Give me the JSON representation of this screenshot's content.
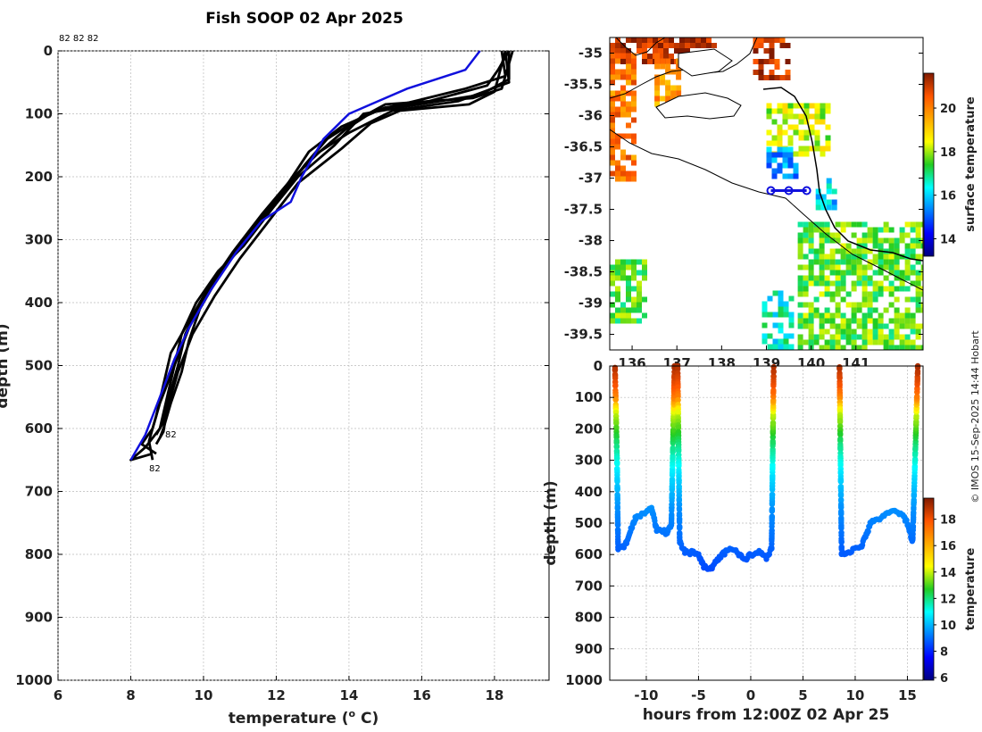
{
  "title": "Fish SOOP 02 Apr 2025",
  "profile_counts_label": "82 82 82",
  "profile_end_labels": [
    "82",
    "82"
  ],
  "credit": "© IMOS 15-Sep-2025 14:44 Hobart",
  "colors": {
    "profile": "#000000",
    "climatology": "#1010dd"
  },
  "chart_data": [
    {
      "name": "temperature-depth-profiles",
      "type": "line",
      "xlabel": "temperature (° C)",
      "xlabel_base": "temperature (",
      "xlabel_sup": "o",
      "xlabel_end": " C)",
      "ylabel": "depth (m)",
      "xlim": [
        6,
        19.5
      ],
      "ylim": [
        1000,
        0
      ],
      "xticks": [
        "6",
        "8",
        "10",
        "12",
        "14",
        "16",
        "18"
      ],
      "xtick_values": [
        6,
        8,
        10,
        12,
        14,
        16,
        18
      ],
      "yticks": [
        "0",
        "100",
        "200",
        "300",
        "400",
        "500",
        "600",
        "700",
        "800",
        "900",
        "1000"
      ],
      "ytick_values": [
        0,
        100,
        200,
        300,
        400,
        500,
        600,
        700,
        800,
        900,
        1000
      ],
      "grid": true,
      "series": [
        {
          "name": "profile 1",
          "color": "#000000",
          "points": [
            [
              18.4,
              0
            ],
            [
              18.4,
              45
            ],
            [
              17.6,
              70
            ],
            [
              15.6,
              88
            ],
            [
              14.4,
              100
            ],
            [
              13.6,
              150
            ],
            [
              12.6,
              200
            ],
            [
              11.9,
              250
            ],
            [
              11.1,
              310
            ],
            [
              10.4,
              350
            ],
            [
              9.8,
              400
            ],
            [
              9.4,
              450
            ],
            [
              9.2,
              500
            ],
            [
              9.0,
              550
            ],
            [
              8.8,
              600
            ],
            [
              8.4,
              630
            ],
            [
              8.0,
              650
            ],
            [
              8.6,
              640
            ]
          ]
        },
        {
          "name": "profile 2",
          "color": "#000000",
          "points": [
            [
              18.3,
              0
            ],
            [
              18.4,
              50
            ],
            [
              17.0,
              80
            ],
            [
              15.2,
              95
            ],
            [
              14.0,
              130
            ],
            [
              13.2,
              160
            ],
            [
              12.4,
              205
            ],
            [
              11.6,
              260
            ],
            [
              10.8,
              320
            ],
            [
              10.1,
              380
            ],
            [
              9.6,
              430
            ],
            [
              9.1,
              480
            ],
            [
              8.9,
              530
            ],
            [
              8.7,
              580
            ],
            [
              8.5,
              620
            ],
            [
              8.6,
              650
            ]
          ]
        },
        {
          "name": "profile 3",
          "color": "#000000",
          "points": [
            [
              18.2,
              0
            ],
            [
              18.3,
              40
            ],
            [
              17.2,
              60
            ],
            [
              15.8,
              80
            ],
            [
              14.7,
              95
            ],
            [
              13.9,
              125
            ],
            [
              13.0,
              170
            ],
            [
              12.2,
              220
            ],
            [
              11.4,
              280
            ],
            [
              10.6,
              340
            ],
            [
              9.9,
              400
            ],
            [
              9.5,
              450
            ],
            [
              9.3,
              500
            ],
            [
              9.1,
              540
            ],
            [
              8.9,
              590
            ],
            [
              8.7,
              610
            ]
          ]
        },
        {
          "name": "profile 4",
          "color": "#000000",
          "points": [
            [
              18.5,
              0
            ],
            [
              18.2,
              60
            ],
            [
              17.4,
              75
            ],
            [
              15.0,
              85
            ],
            [
              14.2,
              110
            ],
            [
              13.4,
              140
            ],
            [
              12.8,
              180
            ],
            [
              12.0,
              240
            ],
            [
              11.3,
              290
            ],
            [
              10.5,
              350
            ],
            [
              9.9,
              410
            ],
            [
              9.6,
              460
            ],
            [
              9.4,
              510
            ],
            [
              9.1,
              560
            ],
            [
              8.9,
              600
            ],
            [
              8.8,
              615
            ]
          ]
        },
        {
          "name": "profile 5",
          "color": "#000000",
          "points": [
            [
              18.4,
              0
            ],
            [
              18.1,
              30
            ],
            [
              17.8,
              55
            ],
            [
              16.2,
              80
            ],
            [
              15.0,
              90
            ],
            [
              13.8,
              120
            ],
            [
              12.9,
              160
            ],
            [
              12.1,
              230
            ],
            [
              11.2,
              300
            ],
            [
              10.2,
              370
            ],
            [
              9.6,
              440
            ],
            [
              9.2,
              500
            ],
            [
              8.8,
              560
            ],
            [
              8.6,
              600
            ],
            [
              8.3,
              625
            ],
            [
              8.7,
              640
            ]
          ]
        },
        {
          "name": "profile 6",
          "color": "#000000",
          "points": [
            [
              18.3,
              0
            ],
            [
              18.0,
              65
            ],
            [
              17.3,
              85
            ],
            [
              15.4,
              95
            ],
            [
              14.6,
              115
            ],
            [
              13.8,
              155
            ],
            [
              12.6,
              210
            ],
            [
              11.8,
              270
            ],
            [
              11.0,
              330
            ],
            [
              10.3,
              390
            ],
            [
              9.7,
              450
            ],
            [
              9.3,
              510
            ],
            [
              9.0,
              570
            ],
            [
              8.9,
              605
            ],
            [
              8.7,
              625
            ]
          ]
        }
      ],
      "climatology": {
        "name": "climatology",
        "color": "#1010dd",
        "points": [
          [
            17.6,
            0
          ],
          [
            17.2,
            30
          ],
          [
            15.6,
            60
          ],
          [
            14.6,
            85
          ],
          [
            14.0,
            100
          ],
          [
            13.3,
            140
          ],
          [
            12.7,
            200
          ],
          [
            12.4,
            240
          ],
          [
            11.6,
            270
          ],
          [
            10.9,
            320
          ],
          [
            10.2,
            380
          ],
          [
            9.6,
            440
          ],
          [
            9.2,
            490
          ],
          [
            8.8,
            550
          ],
          [
            8.4,
            610
          ],
          [
            8.0,
            650
          ]
        ]
      }
    },
    {
      "name": "sea-surface-temperature-map",
      "type": "heatmap",
      "colorbar_label": "surface temperature",
      "colorbar_range": [
        13.2,
        21.6
      ],
      "colorbar_ticks": [
        "14",
        "16",
        "18",
        "20"
      ],
      "colorbar_tick_values": [
        14,
        16,
        18,
        20
      ],
      "lon_range": [
        135.5,
        142.5
      ],
      "lat_range": [
        -39.75,
        -34.75
      ],
      "xticks": [
        "136",
        "137",
        "138",
        "139",
        "140",
        "141"
      ],
      "xtick_values": [
        136,
        137,
        138,
        139,
        140,
        141
      ],
      "yticks": [
        "-35",
        "-35.5",
        "-36",
        "-36.5",
        "-37",
        "-37.5",
        "-38",
        "-38.5",
        "-39",
        "-39.5"
      ],
      "ytick_values": [
        -35,
        -35.5,
        -36,
        -36.5,
        -37,
        -37.5,
        -38,
        -38.5,
        -39,
        -39.5
      ],
      "track": {
        "lon": [
          139.1,
          139.5,
          139.9
        ],
        "lat": [
          -37.2,
          -37.2,
          -37.2
        ]
      },
      "regions": [
        {
          "lon": [
            135.5,
            137.8
          ],
          "lat": [
            -35.1,
            -34.75
          ],
          "temp": 21.2
        },
        {
          "lon": [
            138.7,
            139.5
          ],
          "lat": [
            -35.4,
            -34.75
          ],
          "temp": 21.0
        },
        {
          "lon": [
            135.5,
            136.0
          ],
          "lat": [
            -37.0,
            -35.0
          ],
          "temp": 20.2
        },
        {
          "lon": [
            136.5,
            137.0
          ],
          "lat": [
            -35.8,
            -35.0
          ],
          "temp": 19.8
        },
        {
          "lon": [
            139.0,
            140.4
          ],
          "lat": [
            -36.6,
            -35.8
          ],
          "temp": 18.2
        },
        {
          "lon": [
            139.0,
            139.6
          ],
          "lat": [
            -37.0,
            -36.5
          ],
          "temp": 15.5
        },
        {
          "lon": [
            140.1,
            140.5
          ],
          "lat": [
            -37.5,
            -37.0
          ],
          "temp": 16.0
        },
        {
          "lon": [
            139.7,
            142.5
          ],
          "lat": [
            -39.7,
            -37.7
          ],
          "temp": 17.6
        },
        {
          "lon": [
            135.5,
            136.3
          ],
          "lat": [
            -39.3,
            -38.3
          ],
          "temp": 17.5
        },
        {
          "lon": [
            138.9,
            139.6
          ],
          "lat": [
            -39.7,
            -38.8
          ],
          "temp": 16.5
        }
      ]
    },
    {
      "name": "temperature-depth-time-section",
      "type": "scatter",
      "xlabel": "hours from 12:00Z 02 Apr 25",
      "ylabel": "depth (m)",
      "colorbar_label": "temperature",
      "xlim": [
        -13.5,
        16.5
      ],
      "ylim": [
        1000,
        0
      ],
      "xticks": [
        "-10",
        "-5",
        "0",
        "5",
        "10",
        "15"
      ],
      "xtick_values": [
        -10,
        -5,
        0,
        5,
        10,
        15
      ],
      "yticks": [
        "0",
        "100",
        "200",
        "300",
        "400",
        "500",
        "600",
        "700",
        "800",
        "900",
        "1000"
      ],
      "ytick_values": [
        0,
        100,
        200,
        300,
        400,
        500,
        600,
        700,
        800,
        900,
        1000
      ],
      "colorbar_range": [
        5.8,
        19.6
      ],
      "colorbar_ticks": [
        "6",
        "8",
        "10",
        "12",
        "14",
        "16",
        "18"
      ],
      "colorbar_tick_values": [
        6,
        8,
        10,
        12,
        14,
        16,
        18
      ],
      "path": [
        [
          -13.0,
          0
        ],
        [
          -12.8,
          300
        ],
        [
          -12.7,
          580
        ],
        [
          -12.0,
          570
        ],
        [
          -11.0,
          480
        ],
        [
          -10.0,
          470
        ],
        [
          -9.5,
          450
        ],
        [
          -9.0,
          520
        ],
        [
          -8.0,
          530
        ],
        [
          -7.6,
          510
        ],
        [
          -7.3,
          0
        ],
        [
          -7.0,
          0
        ],
        [
          -6.8,
          560
        ],
        [
          -6.3,
          590
        ],
        [
          -5.0,
          600
        ],
        [
          -4.5,
          640
        ],
        [
          -4.0,
          650
        ],
        [
          -3.0,
          610
        ],
        [
          -2.0,
          580
        ],
        [
          -1.0,
          600
        ],
        [
          -0.5,
          620
        ],
        [
          0.0,
          600
        ],
        [
          0.8,
          590
        ],
        [
          1.5,
          610
        ],
        [
          2.0,
          580
        ],
        [
          2.2,
          0
        ],
        [
          8.5,
          0
        ],
        [
          8.7,
          600
        ],
        [
          9.5,
          590
        ],
        [
          10.5,
          580
        ],
        [
          11.0,
          540
        ],
        [
          11.5,
          500
        ],
        [
          12.5,
          480
        ],
        [
          13.5,
          460
        ],
        [
          14.5,
          470
        ],
        [
          15.0,
          500
        ],
        [
          15.5,
          560
        ],
        [
          16.0,
          0
        ]
      ],
      "temp_profile": [
        [
          0,
          19.0
        ],
        [
          60,
          18.0
        ],
        [
          100,
          17.0
        ],
        [
          150,
          14.0
        ],
        [
          250,
          12.0
        ],
        [
          350,
          10.5
        ],
        [
          450,
          9.5
        ],
        [
          550,
          9.0
        ],
        [
          650,
          8.5
        ]
      ]
    }
  ]
}
